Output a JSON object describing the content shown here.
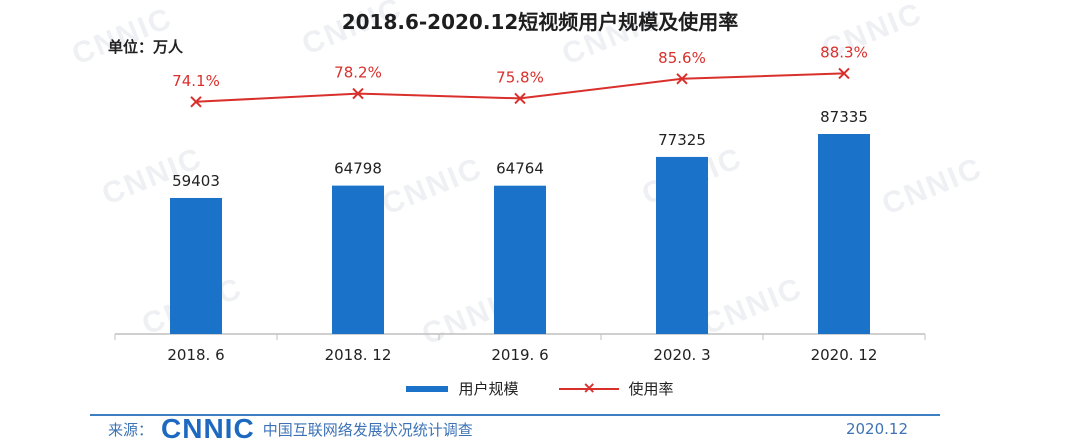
{
  "chart_data": {
    "type": "bar",
    "title": "2018.6-2020.12短视频用户规模及使用率",
    "unit_label": "单位：万人",
    "categories": [
      "2018. 6",
      "2018. 12",
      "2019. 6",
      "2020. 3",
      "2020. 12"
    ],
    "series": [
      {
        "name": "用户规模",
        "type": "bar",
        "values": [
          59403,
          64798,
          64764,
          77325,
          87335
        ],
        "labels": [
          "59403",
          "64798",
          "64764",
          "77325",
          "87335"
        ],
        "color": "#1a73c9"
      },
      {
        "name": "使用率",
        "type": "line",
        "values": [
          74.1,
          78.2,
          75.8,
          85.6,
          88.3
        ],
        "labels": [
          "74.1%",
          "78.2%",
          "75.8%",
          "85.6%",
          "88.3%"
        ],
        "color": "#d9302c"
      }
    ],
    "legend_position": "bottom-center",
    "grid": false
  },
  "footer": {
    "source_label": "来源：",
    "logo_text": "CNNIC",
    "org": "中国互联网络发展状况统计调查",
    "date": "2020.12"
  }
}
